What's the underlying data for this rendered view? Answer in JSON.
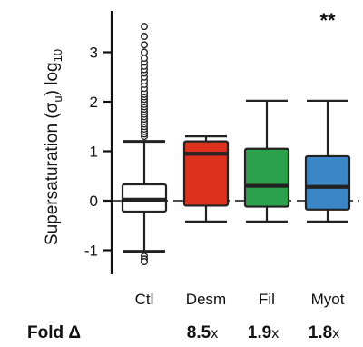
{
  "chart_data": {
    "type": "box",
    "ylabel": "Supersaturation (σu) log10",
    "ylim": [
      -1.45,
      3.75
    ],
    "yticks": [
      -1,
      0,
      1,
      2,
      3
    ],
    "ytick_labels": [
      "-1",
      "0",
      "1",
      "2",
      "3"
    ],
    "reference_line": 0,
    "categories": [
      "Ctl",
      "Desm",
      "Fil",
      "Myot"
    ],
    "boxes": [
      {
        "name": "Ctl",
        "whisker_low": -1.02,
        "q1": -0.22,
        "median": 0.02,
        "q3": 0.33,
        "whisker_high": 1.2,
        "outliers_high": [
          1.3,
          1.35,
          1.4,
          1.45,
          1.5,
          1.55,
          1.6,
          1.65,
          1.7,
          1.75,
          1.8,
          1.85,
          1.9,
          1.95,
          2.0,
          2.05,
          2.1,
          2.15,
          2.2,
          2.27,
          2.35,
          2.42,
          2.5,
          2.58,
          2.65,
          2.72,
          2.8,
          2.88,
          3.0,
          3.15,
          3.32,
          3.52
        ],
        "outliers_low": [
          -1.12,
          -1.18,
          -1.23
        ]
      },
      {
        "name": "Desm",
        "whisker_low": -0.42,
        "q1": -0.1,
        "median": 0.95,
        "q3": 1.2,
        "whisker_high": 1.3
      },
      {
        "name": "Fil",
        "whisker_low": -0.42,
        "q1": -0.12,
        "median": 0.3,
        "q3": 1.05,
        "whisker_high": 2.02
      },
      {
        "name": "Myot",
        "whisker_low": -0.42,
        "q1": -0.18,
        "median": 0.28,
        "q3": 0.9,
        "whisker_high": 2.02
      }
    ],
    "significance": [
      {
        "category": "Myot",
        "label": "**"
      }
    ],
    "fold_change": {
      "title": "Fold Δ",
      "values": [
        {
          "category": "Desm",
          "value": "8.5",
          "suffix": "x"
        },
        {
          "category": "Fil",
          "value": "1.9",
          "suffix": "x"
        },
        {
          "category": "Myot",
          "value": "1.8",
          "suffix": "x"
        }
      ]
    },
    "colors": {
      "Ctl": "#ffffff",
      "Desm": "#e0301e",
      "Fil": "#2aa14a",
      "Myot": "#3b86c6",
      "stroke": "#222222"
    },
    "grid": false,
    "legend": "none"
  }
}
